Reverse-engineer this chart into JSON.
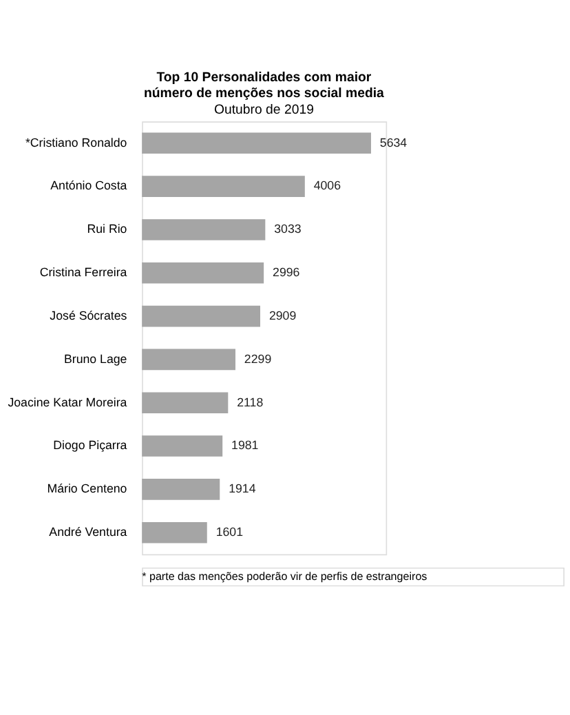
{
  "chart_data": {
    "type": "bar",
    "orientation": "horizontal",
    "title": "Top 10 Personalidades  com maior\nnúmero de menções nos social  media",
    "subtitle": "Outubro de 2019",
    "categories": [
      "*Cristiano Ronaldo",
      "António Costa",
      "Rui Rio",
      "Cristina Ferreira",
      "José Sócrates",
      "Bruno Lage",
      "Joacine Katar Moreira",
      "Diogo Piçarra",
      "Mário Centeno",
      "André Ventura"
    ],
    "values": [
      5634,
      4006,
      3033,
      2996,
      2909,
      2299,
      2118,
      1981,
      1914,
      1601
    ],
    "color": "#a5a5a5",
    "data_labels": true,
    "annotations": [
      "*  parte das menções poderão vir de perfis de estrangeiros"
    ]
  }
}
